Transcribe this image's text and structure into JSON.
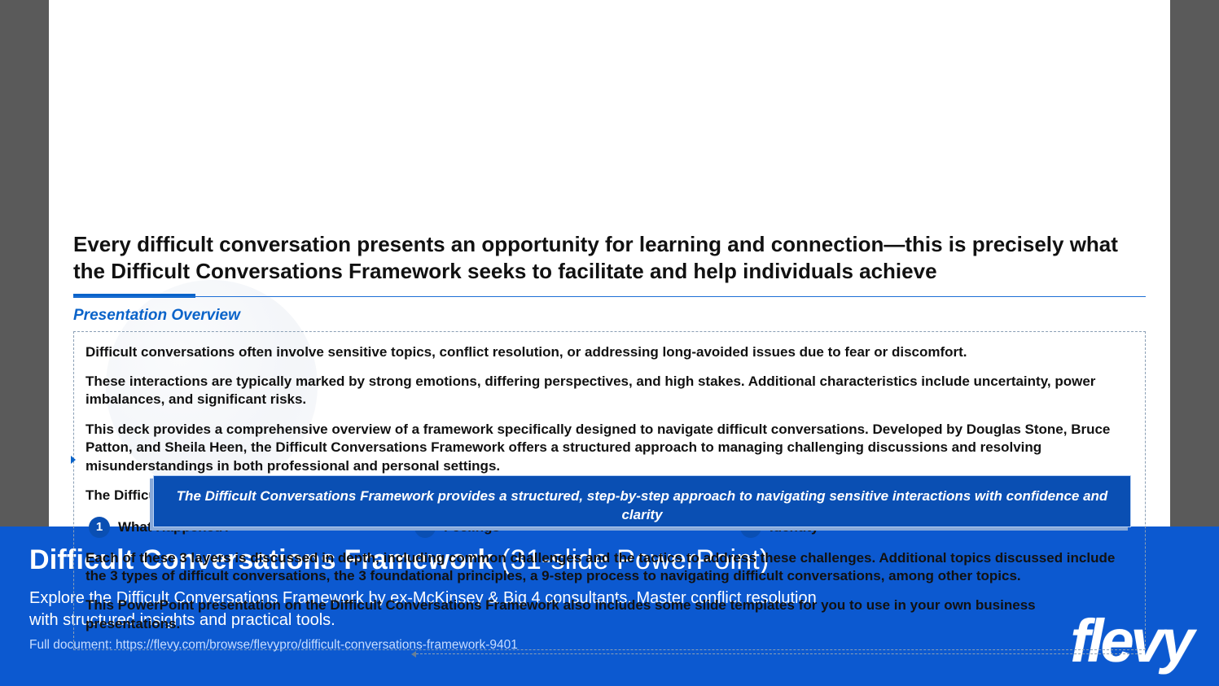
{
  "colors": {
    "page_bg": "#5a5a5a",
    "slide_bg": "#ffffff",
    "accent_blue": "#0a63c9",
    "deep_blue": "#0a4fb3",
    "infobar_blue": "#0c59d0",
    "text": "#111111",
    "link_text": "#c7ddff",
    "dash_border": "#8a9fb5"
  },
  "slide": {
    "headline": "Every difficult conversation presents an opportunity for learning and connection—this is precisely what the Difficult Conversations Framework seeks to facilitate and help individuals achieve",
    "section_label": "Presentation Overview",
    "paragraphs": {
      "p1": "Difficult conversations often involve sensitive topics, conflict resolution, or addressing long-avoided issues due to fear or discomfort.",
      "p2": "These interactions are typically marked by strong emotions, differing perspectives, and high stakes. Additional characteristics include uncertainty, power imbalances, and significant risks.",
      "p3": "This deck provides a comprehensive overview of a framework specifically designed to navigate difficult conversations. Developed by Douglas Stone, Bruce Patton, and Sheila Heen, the Difficult Conversations Framework offers a structured approach to managing challenging discussions and resolving misunderstandings in both professional and personal settings.",
      "p4": "The Difficult Conversations Framework is built upon 3 foundational components (or layers):",
      "p5": "Each of these 3 layers is discussed in depth, including common challenges and the tactics to address these challenges. Additional topics discussed include the 3 types of difficult conversations, the 3 foundational principles, a 9-step process to navigating difficult conversations, among other topics.",
      "p6": "This PowerPoint presentation on the Difficult Conversations Framework also includes some slide templates for you to use in your own business presentations."
    },
    "layers": [
      {
        "num": "1",
        "label": "What Happened?"
      },
      {
        "num": "2",
        "label": "Feelings"
      },
      {
        "num": "3",
        "label": "Identity"
      }
    ],
    "callout": "The Difficult Conversations Framework provides a structured, step-by-step approach to navigating sensitive interactions with confidence and clarity"
  },
  "infobar": {
    "title_bold": "Difficult Conversations Framework",
    "title_rest": " (31-slide PowerPoint)",
    "description": "Explore the Difficult Conversations Framework by ex-McKinsey & Big 4 consultants. Master conflict resolution with structured insights and practical tools.",
    "doc_prefix": "Full document: ",
    "doc_url": "https://flevy.com/browse/flevypro/difficult-conversations-framework-9401",
    "logo_text": "flevy"
  }
}
